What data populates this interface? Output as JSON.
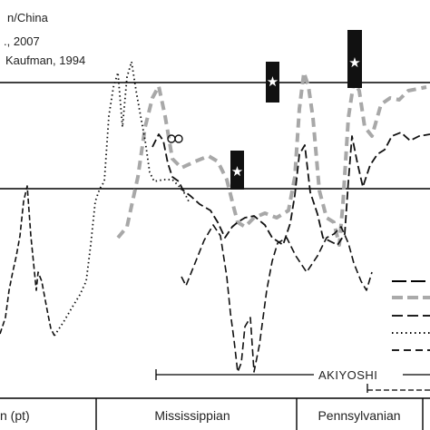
{
  "chart_data": {
    "type": "line",
    "title": "",
    "xlabel": "",
    "ylabel": "",
    "legend_text": [
      "n/China",
      "., 2007",
      "Kaufman, 1994"
    ],
    "periods": [
      "n (pt)",
      "Mississippian",
      "Pennsylvanian"
    ],
    "range_labels": [
      "AKIYOSHI"
    ],
    "reference_lines": 2,
    "markers": [
      "star-box",
      "star-box",
      "star-box",
      "circle-pair"
    ],
    "legend_placement": "bottom-right",
    "grid": false,
    "series": [
      {
        "style": "dashed-gray-thick",
        "values": [
          [
            130,
            262
          ],
          [
            140,
            250
          ],
          [
            152,
            195
          ],
          [
            160,
            140
          ],
          [
            168,
            108
          ],
          [
            175,
            95
          ],
          [
            182,
            128
          ],
          [
            190,
            175
          ],
          [
            200,
            185
          ],
          [
            215,
            178
          ],
          [
            230,
            172
          ],
          [
            240,
            178
          ],
          [
            250,
            198
          ],
          [
            258,
            230
          ],
          [
            262,
            245
          ],
          [
            270,
            250
          ],
          [
            280,
            240
          ],
          [
            292,
            235
          ],
          [
            305,
            240
          ],
          [
            318,
            232
          ],
          [
            325,
            195
          ],
          [
            330,
            120
          ],
          [
            335,
            80
          ],
          [
            340,
            95
          ],
          [
            345,
            130
          ],
          [
            352,
            210
          ],
          [
            360,
            240
          ],
          [
            368,
            245
          ],
          [
            374,
            270
          ],
          [
            378,
            225
          ],
          [
            384,
            130
          ],
          [
            390,
            90
          ],
          [
            396,
            100
          ],
          [
            402,
            140
          ],
          [
            410,
            150
          ],
          [
            420,
            115
          ],
          [
            430,
            108
          ],
          [
            440,
            110
          ],
          [
            450,
            100
          ],
          [
            460,
            98
          ],
          [
            470,
            96
          ]
        ]
      },
      {
        "style": "dotted-black",
        "values": [
          [
            60,
            370
          ],
          [
            70,
            355
          ],
          [
            80,
            338
          ],
          [
            88,
            325
          ],
          [
            95,
            310
          ],
          [
            100,
            270
          ],
          [
            105,
            222
          ],
          [
            110,
            208
          ],
          [
            115,
            200
          ],
          [
            120,
            128
          ],
          [
            125,
            96
          ],
          [
            130,
            80
          ],
          [
            135,
            140
          ],
          [
            140,
            85
          ],
          [
            145,
            68
          ],
          [
            150,
            100
          ],
          [
            155,
            128
          ],
          [
            160,
            155
          ],
          [
            165,
            190
          ],
          [
            170,
            200
          ],
          [
            180,
            198
          ],
          [
            190,
            198
          ],
          [
            198,
            206
          ],
          [
            204,
            214
          ],
          [
            208,
            222
          ]
        ]
      },
      {
        "style": "dashed-black",
        "values": [
          [
            168,
            162
          ],
          [
            175,
            148
          ],
          [
            180,
            155
          ],
          [
            185,
            180
          ],
          [
            190,
            195
          ],
          [
            197,
            200
          ],
          [
            202,
            210
          ],
          [
            210,
            216
          ],
          [
            220,
            225
          ],
          [
            232,
            232
          ],
          [
            240,
            245
          ],
          [
            248,
            262
          ],
          [
            256,
            250
          ],
          [
            262,
            245
          ],
          [
            270,
            240
          ],
          [
            280,
            238
          ],
          [
            292,
            248
          ],
          [
            300,
            262
          ],
          [
            312,
            270
          ],
          [
            320,
            246
          ],
          [
            325,
            215
          ],
          [
            330,
            170
          ],
          [
            336,
            160
          ],
          [
            342,
            212
          ],
          [
            350,
            236
          ],
          [
            356,
            262
          ],
          [
            364,
            266
          ],
          [
            372,
            270
          ],
          [
            380,
            258
          ],
          [
            384,
            200
          ],
          [
            388,
            150
          ],
          [
            394,
            180
          ],
          [
            400,
            206
          ],
          [
            408,
            182
          ],
          [
            416,
            170
          ],
          [
            424,
            165
          ],
          [
            432,
            150
          ],
          [
            442,
            146
          ],
          [
            452,
            155
          ],
          [
            462,
            150
          ],
          [
            474,
            148
          ]
        ]
      },
      {
        "style": "dashed-black-thin",
        "values": [
          [
            0,
            368
          ],
          [
            6,
            350
          ],
          [
            10,
            320
          ],
          [
            14,
            300
          ],
          [
            18,
            282
          ],
          [
            22,
            260
          ],
          [
            26,
            222
          ],
          [
            30,
            205
          ],
          [
            34,
            260
          ],
          [
            38,
            300
          ],
          [
            40,
            320
          ],
          [
            42,
            300
          ],
          [
            46,
            310
          ],
          [
            52,
            342
          ],
          [
            56,
            362
          ],
          [
            60,
            370
          ]
        ]
      },
      {
        "style": "dashed-black-low",
        "values": [
          [
            200,
            305
          ],
          [
            205,
            315
          ],
          [
            215,
            290
          ],
          [
            225,
            265
          ],
          [
            235,
            248
          ],
          [
            243,
            260
          ],
          [
            250,
            305
          ],
          [
            254,
            345
          ],
          [
            258,
            375
          ],
          [
            262,
            410
          ],
          [
            266,
            400
          ],
          [
            270,
            360
          ],
          [
            276,
            350
          ],
          [
            280,
            410
          ],
          [
            286,
            380
          ],
          [
            294,
            320
          ],
          [
            300,
            288
          ],
          [
            306,
            268
          ],
          [
            316,
            262
          ],
          [
            326,
            282
          ],
          [
            338,
            300
          ],
          [
            350,
            282
          ],
          [
            360,
            262
          ],
          [
            368,
            258
          ],
          [
            376,
            250
          ],
          [
            384,
            268
          ],
          [
            390,
            290
          ],
          [
            398,
            310
          ],
          [
            404,
            320
          ],
          [
            410,
            300
          ]
        ]
      }
    ]
  }
}
